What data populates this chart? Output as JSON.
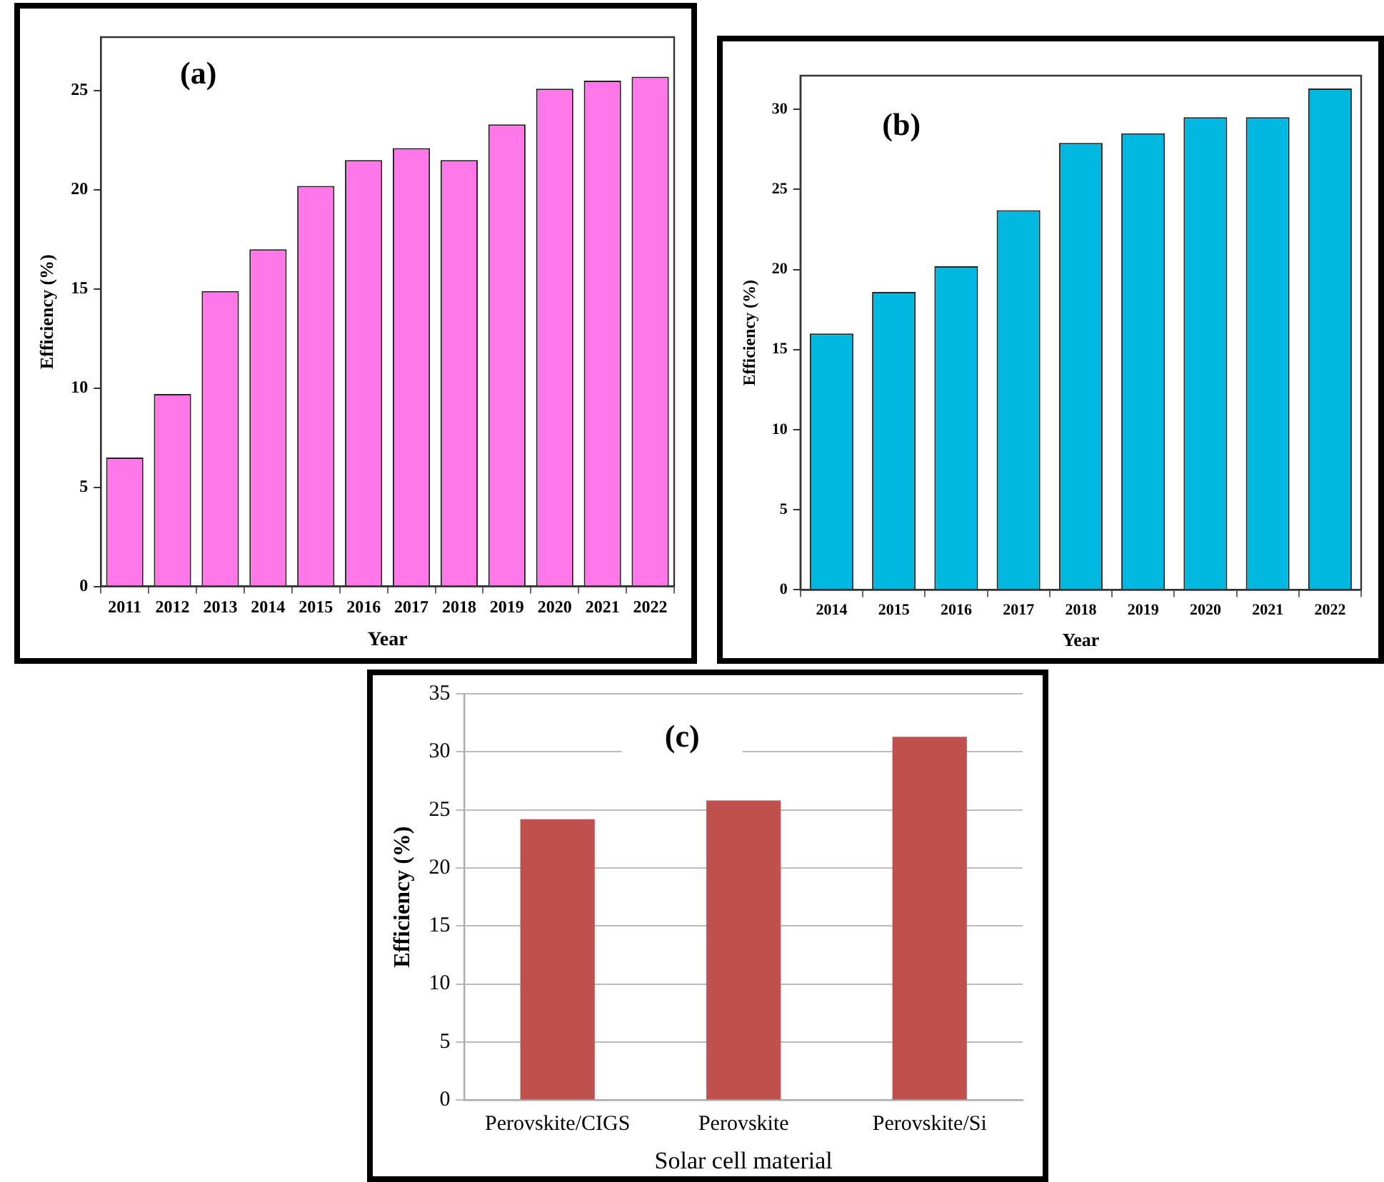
{
  "chart_data": [
    {
      "type": "bar",
      "categories": [
        "2011",
        "2012",
        "2013",
        "2014",
        "2015",
        "2016",
        "2017",
        "2018",
        "2019",
        "2020",
        "2021",
        "2022"
      ],
      "series": [
        {
          "color": "#ff77e8",
          "values": [
            6.5,
            9.7,
            14.9,
            17.0,
            20.2,
            21.5,
            22.1,
            21.5,
            23.3,
            25.1,
            25.5,
            25.7
          ]
        }
      ],
      "xlabel": "Year",
      "ylabel": "Efficiency (%)",
      "ylim": [
        0,
        27.7
      ],
      "yticks": [
        0,
        5,
        10,
        15,
        20,
        25
      ],
      "grid": false,
      "legend": false,
      "annotations": [
        "(a)"
      ]
    },
    {
      "type": "bar",
      "categories": [
        "2014",
        "2015",
        "2016",
        "2017",
        "2018",
        "2019",
        "2020",
        "2021",
        "2022"
      ],
      "series": [
        {
          "color": "#00b8e0",
          "values": [
            16.0,
            18.6,
            20.2,
            23.7,
            27.9,
            28.5,
            29.5,
            29.5,
            31.3
          ]
        }
      ],
      "xlabel": "Year",
      "ylabel": "Efficiency (%)",
      "ylim": [
        0,
        32.1
      ],
      "yticks": [
        0,
        5,
        10,
        15,
        20,
        25,
        30
      ],
      "grid": false,
      "legend": false,
      "annotations": [
        "(b)"
      ]
    },
    {
      "type": "bar",
      "categories": [
        "Perovskite/CIGS",
        "Perovskite",
        "Perovskite/Si"
      ],
      "series": [
        {
          "color": "#c0504d",
          "values": [
            24.2,
            25.8,
            31.3
          ]
        }
      ],
      "xlabel": "Solar cell material",
      "ylabel": "Efficiency (%)",
      "ylim": [
        0,
        35
      ],
      "yticks": [
        0,
        5,
        10,
        15,
        20,
        25,
        30,
        35
      ],
      "grid": "y",
      "legend": false,
      "annotations": [
        "(c)"
      ]
    }
  ]
}
